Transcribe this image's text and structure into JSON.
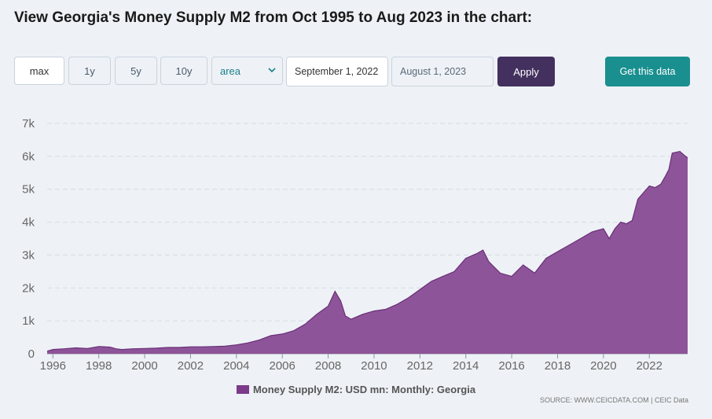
{
  "title": "View Georgia's Money Supply M2 from Oct 1995 to Aug 2023 in the chart:",
  "controls": {
    "range_buttons": [
      "max",
      "1y",
      "5y",
      "10y"
    ],
    "active_range": "max",
    "chart_type_selected": "area",
    "date_from": "September 1, 2022",
    "date_to": "August 1, 2023",
    "apply_label": "Apply",
    "get_data_label": "Get this data"
  },
  "legend_label": "Money Supply M2: USD mn: Monthly: Georgia",
  "source_text": "SOURCE: WWW.CEICDATA.COM | CEIC Data",
  "colors": {
    "series_fill": "#8e5499",
    "series_line": "#6a2f78",
    "swatch": "#7b3a8a",
    "apply_bg": "#43305e",
    "get_data_bg": "#1a8f8f"
  },
  "chart_data": {
    "type": "area",
    "x_unit": "year",
    "ylim": [
      0,
      7000
    ],
    "xlim": [
      1995.75,
      2023.67
    ],
    "y_ticks": [
      0,
      1000,
      2000,
      3000,
      4000,
      5000,
      6000,
      7000
    ],
    "y_tick_labels": [
      "0",
      "1k",
      "2k",
      "3k",
      "4k",
      "5k",
      "6k",
      "7k"
    ],
    "x_ticks": [
      1996,
      1998,
      2000,
      2002,
      2004,
      2006,
      2008,
      2010,
      2012,
      2014,
      2016,
      2018,
      2020,
      2022
    ],
    "grid": true,
    "legend_position": "bottom",
    "series": [
      {
        "name": "Money Supply M2: USD mn: Monthly: Georgia",
        "x": [
          1995.75,
          1996.0,
          1996.5,
          1997.0,
          1997.5,
          1998.0,
          1998.5,
          1998.75,
          1999.0,
          1999.5,
          2000.0,
          2000.5,
          2001.0,
          2001.5,
          2002.0,
          2002.5,
          2003.0,
          2003.5,
          2004.0,
          2004.5,
          2005.0,
          2005.5,
          2006.0,
          2006.5,
          2007.0,
          2007.5,
          2008.0,
          2008.3,
          2008.55,
          2008.75,
          2009.0,
          2009.5,
          2010.0,
          2010.5,
          2011.0,
          2011.5,
          2012.0,
          2012.5,
          2013.0,
          2013.5,
          2014.0,
          2014.5,
          2014.75,
          2015.0,
          2015.5,
          2016.0,
          2016.5,
          2017.0,
          2017.5,
          2018.0,
          2018.5,
          2019.0,
          2019.5,
          2020.0,
          2020.25,
          2020.5,
          2020.75,
          2021.0,
          2021.25,
          2021.5,
          2021.75,
          2022.0,
          2022.25,
          2022.5,
          2022.7,
          2022.85,
          2023.0,
          2023.33,
          2023.58,
          2023.67
        ],
        "y": [
          80,
          130,
          150,
          180,
          160,
          220,
          200,
          150,
          130,
          150,
          160,
          170,
          190,
          190,
          210,
          210,
          220,
          230,
          270,
          330,
          420,
          550,
          600,
          700,
          900,
          1200,
          1450,
          1900,
          1600,
          1150,
          1050,
          1200,
          1300,
          1350,
          1500,
          1700,
          1950,
          2200,
          2350,
          2500,
          2900,
          3050,
          3150,
          2800,
          2450,
          2350,
          2700,
          2450,
          2900,
          3100,
          3300,
          3500,
          3700,
          3800,
          3500,
          3800,
          4000,
          3950,
          4050,
          4700,
          4900,
          5100,
          5050,
          5150,
          5400,
          5600,
          6100,
          6150,
          6000,
          5950
        ]
      }
    ]
  }
}
